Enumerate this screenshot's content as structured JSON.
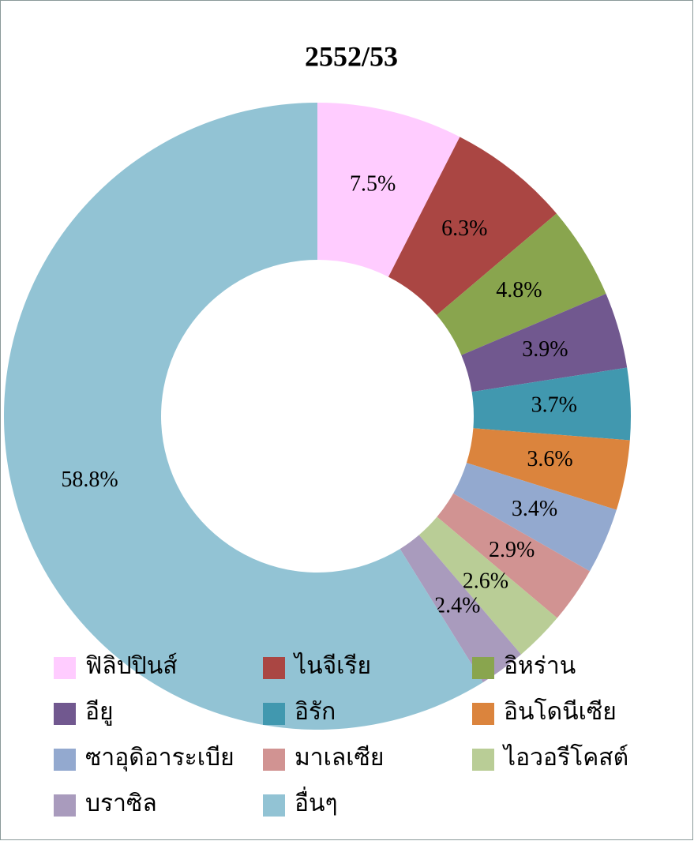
{
  "chart_data": {
    "type": "donut",
    "title": "2552/53",
    "categories": [
      "ฟิลิปปินส์",
      "ไนจีเรีย",
      "อิหร่าน",
      "อียู",
      "อิรัก",
      "อินโดนีเซีย",
      "ซาอุดิอาระเบีย",
      "มาเลเซีย",
      "ไอวอรีโคสต์",
      "บราซิล",
      "อื่นๆ"
    ],
    "values": [
      7.5,
      6.3,
      4.8,
      3.9,
      3.7,
      3.6,
      3.4,
      2.9,
      2.6,
      2.4,
      58.8
    ],
    "value_labels": [
      "7.5%",
      "6.3%",
      "4.8%",
      "3.9%",
      "3.7%",
      "3.6%",
      "3.4%",
      "2.9%",
      "2.6%",
      "2.4%",
      "58.8%"
    ],
    "colors": [
      "#ffccff",
      "#aa4643",
      "#89a54e",
      "#71588f",
      "#4198af",
      "#db843d",
      "#93a9cf",
      "#d19392",
      "#b9cd96",
      "#a99bbd",
      "#92c3d4"
    ],
    "legend": "bottom"
  }
}
